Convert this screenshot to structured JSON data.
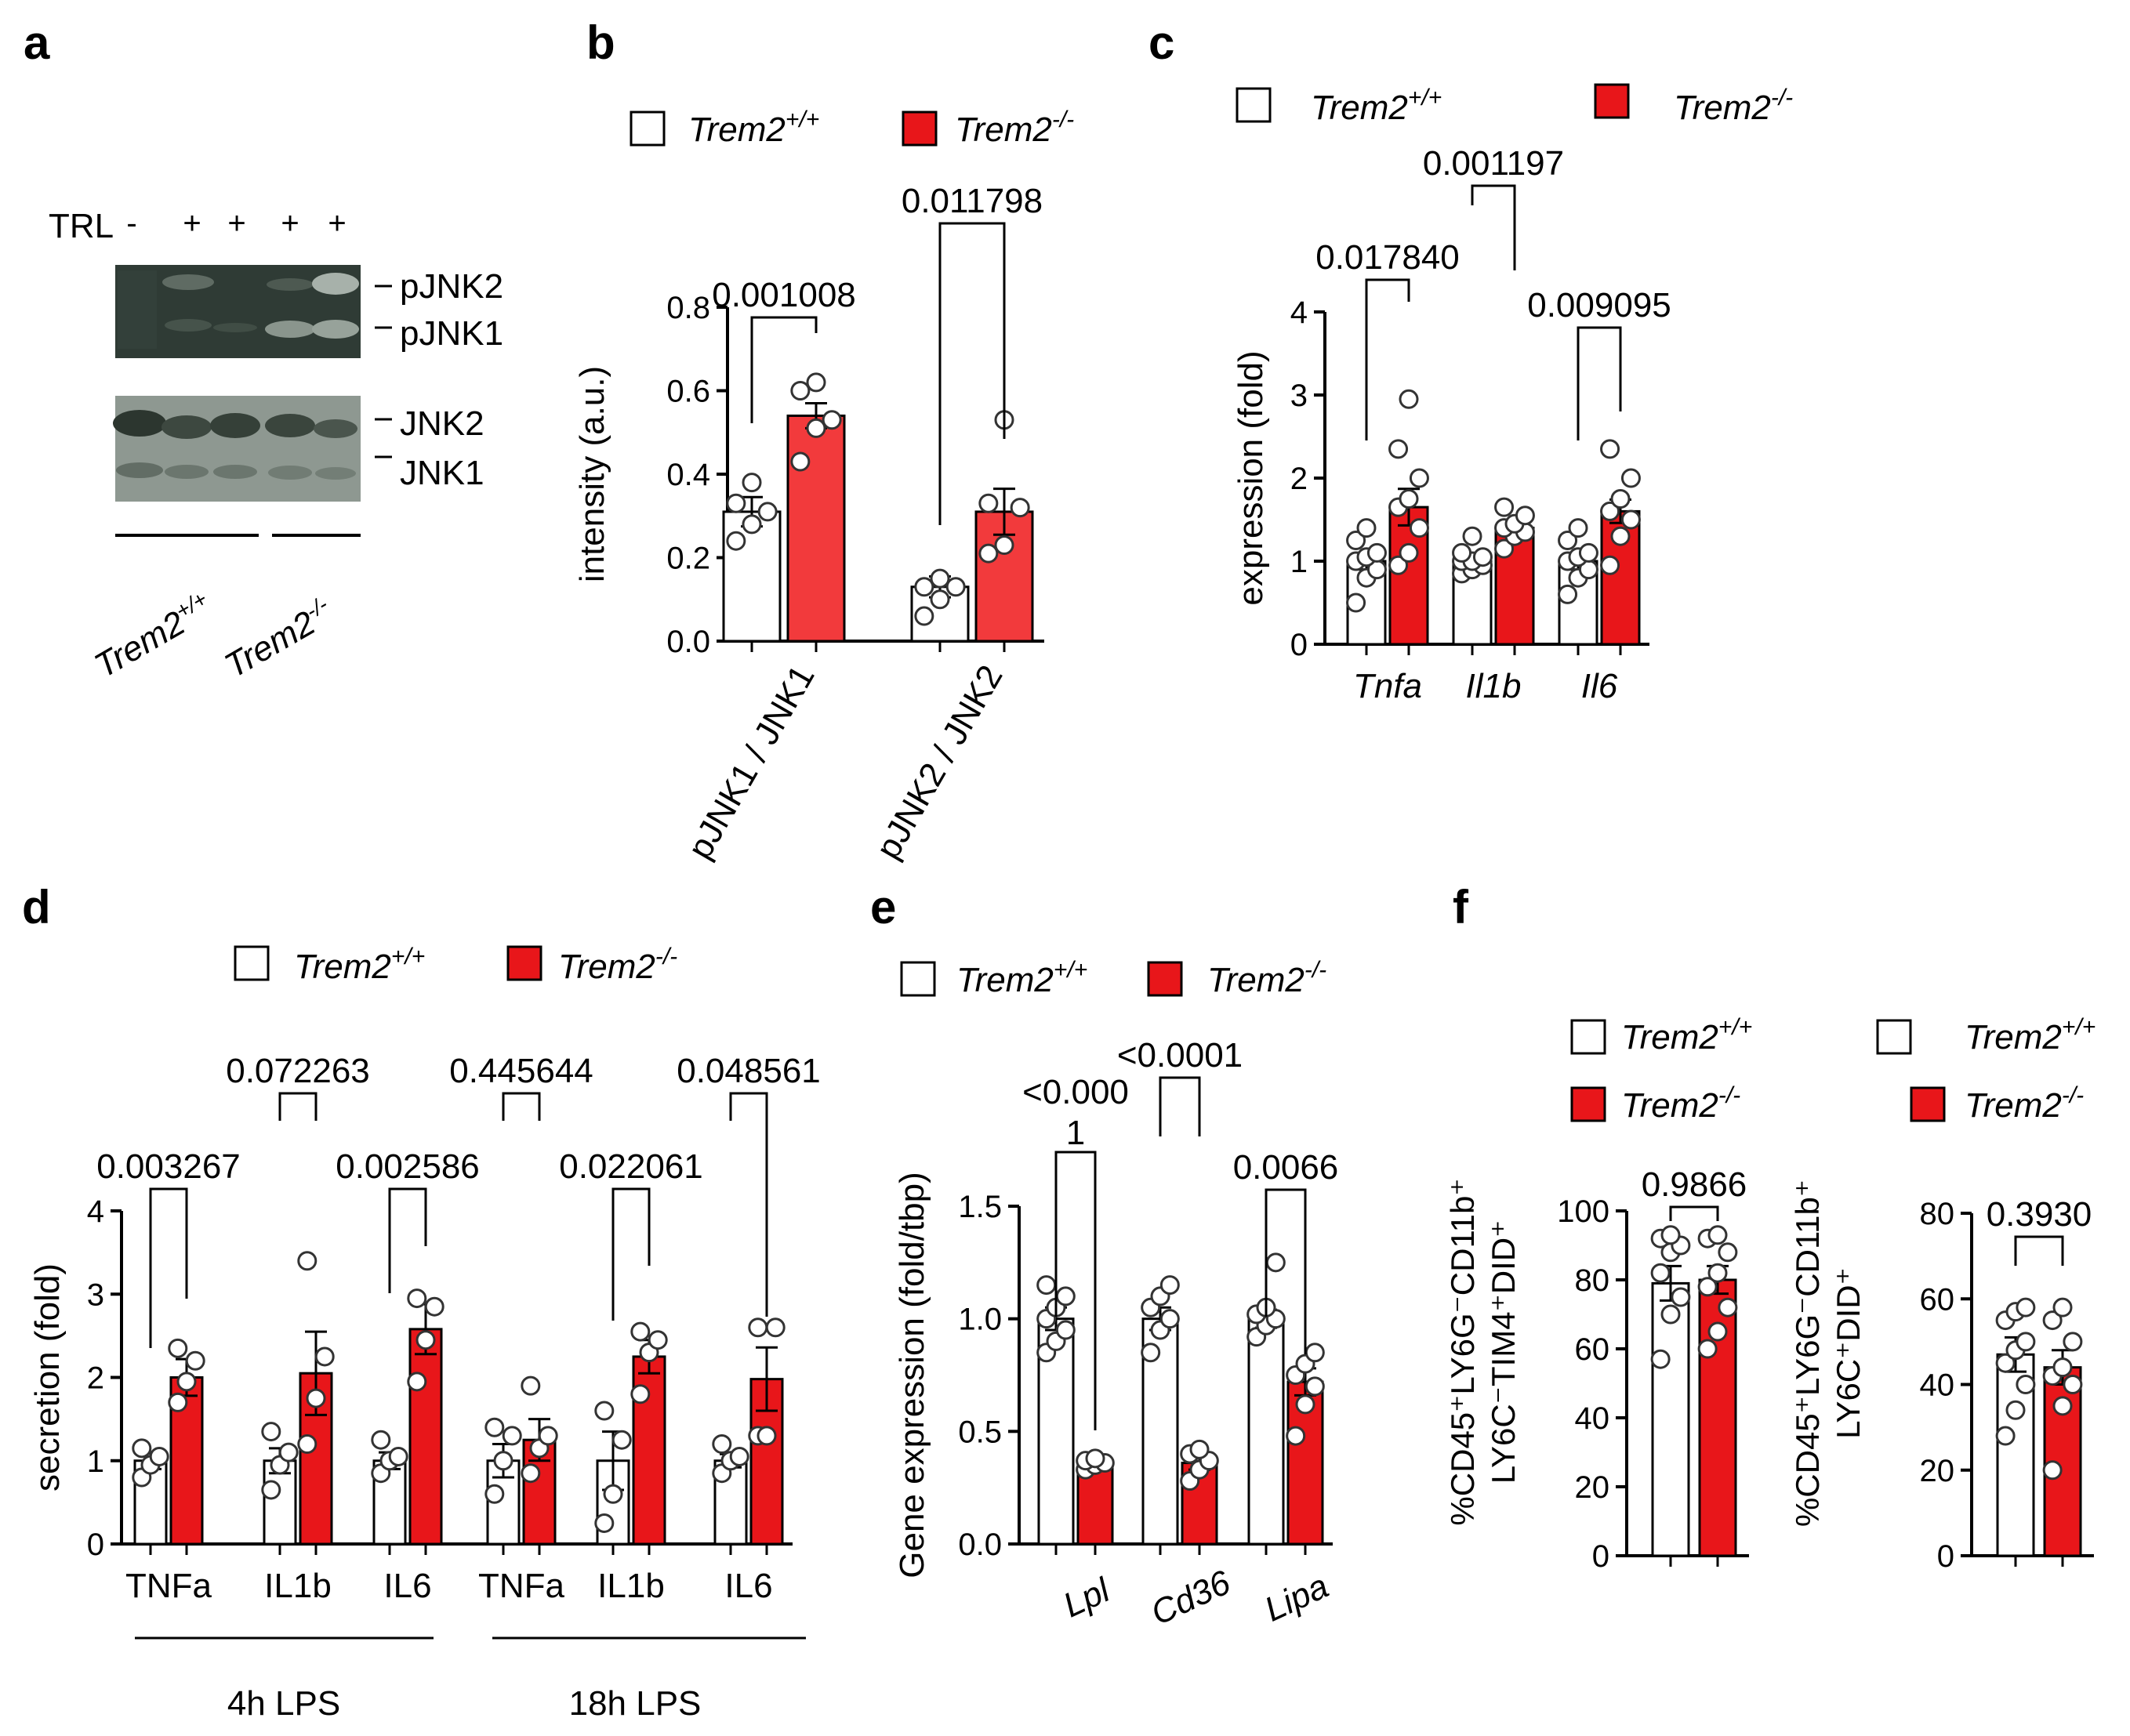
{
  "colors": {
    "wt": "#ffffff",
    "ko": "#e8161a",
    "ko_light": "#f23a3c",
    "ink": "#000000",
    "blot_bg": "#2f3b35",
    "blot_bg2": "#6d7870"
  },
  "legend": {
    "wt": "Trem2",
    "wt_sup": "+/+",
    "ko": "Trem2",
    "ko_sup": "-/-"
  },
  "panel_a": {
    "letter": "a",
    "treatment_label": "TRL",
    "treatment_marks": [
      "-",
      "+",
      "+",
      "+",
      "+"
    ],
    "band_labels": [
      "pJNK2",
      "pJNK1",
      "JNK2",
      "JNK1"
    ],
    "genotype_labels": [
      {
        "text": "Trem2",
        "sup": "+/+"
      },
      {
        "text": "Trem2",
        "sup": "-/-"
      }
    ]
  },
  "chart_data": [
    {
      "id": "b",
      "type": "bar",
      "letter": "b",
      "ylabel": "intensity (a.u.)",
      "ylim": [
        0,
        0.8
      ],
      "yticks": [
        "0.0",
        "0.2",
        "0.4",
        "0.6",
        "0.8"
      ],
      "categories": [
        "pJNK1 / JNK1",
        "pJNK2 / JNK2"
      ],
      "series": [
        {
          "name": "Trem2+/+",
          "values": [
            0.31,
            0.13
          ],
          "sem": [
            0.035,
            0.025
          ]
        },
        {
          "name": "Trem2-/-",
          "values": [
            0.54,
            0.31
          ],
          "sem": [
            0.03,
            0.055
          ]
        }
      ],
      "points": [
        [
          [
            0.24,
            0.28,
            0.31,
            0.33,
            0.38
          ],
          [
            0.06,
            0.1,
            0.13,
            0.13,
            0.15
          ]
        ],
        [
          [
            0.43,
            0.51,
            0.53,
            0.6,
            0.62
          ],
          [
            0.21,
            0.23,
            0.32,
            0.33,
            0.53
          ]
        ]
      ],
      "comparisons": [
        {
          "label": "0.001008"
        },
        {
          "label": "0.011798"
        }
      ]
    },
    {
      "id": "c",
      "type": "bar",
      "letter": "c",
      "ylabel": "expression  (fold)",
      "ylim": [
        0,
        4
      ],
      "yticks": [
        "0",
        "1",
        "2",
        "3",
        "4"
      ],
      "categories": [
        "Tnfa",
        "Il1b",
        "Il6"
      ],
      "series": [
        {
          "name": "Trem2+/+",
          "values": [
            1.0,
            1.0,
            1.0
          ],
          "sem": [
            0.1,
            0.05,
            0.1
          ]
        },
        {
          "name": "Trem2-/-",
          "values": [
            1.65,
            1.4,
            1.6
          ],
          "sem": [
            0.22,
            0.08,
            0.14
          ]
        }
      ],
      "points": [
        [
          [
            0.5,
            0.8,
            0.9,
            1.0,
            1.05,
            1.1,
            1.25,
            1.4
          ],
          [
            0.85,
            0.9,
            0.95,
            1.0,
            1.0,
            1.05,
            1.1,
            1.3
          ],
          [
            0.6,
            0.8,
            0.9,
            1.0,
            1.05,
            1.1,
            1.25,
            1.4
          ]
        ],
        [
          [
            0.95,
            1.1,
            1.4,
            1.65,
            1.75,
            2.0,
            2.35,
            2.95
          ],
          [
            1.15,
            1.3,
            1.35,
            1.4,
            1.45,
            1.55,
            1.65
          ],
          [
            0.95,
            1.3,
            1.5,
            1.6,
            1.75,
            2.0,
            2.35
          ]
        ]
      ],
      "comparisons": [
        {
          "label": "0.017840"
        },
        {
          "label": "0.001197"
        },
        {
          "label": "0.009095"
        }
      ]
    },
    {
      "id": "d",
      "type": "bar",
      "letter": "d",
      "ylabel": "secretion (fold)",
      "ylim": [
        0,
        4
      ],
      "yticks": [
        "0",
        "1",
        "2",
        "3",
        "4"
      ],
      "categories": [
        "TNFa",
        "IL1b",
        "IL6",
        "TNFa",
        "IL1b",
        "IL6"
      ],
      "groups": [
        "4h LPS",
        "18h LPS"
      ],
      "series": [
        {
          "name": "Trem2+/+",
          "values": [
            1.0,
            1.0,
            1.0,
            1.0,
            1.0,
            1.0
          ],
          "sem": [
            0.1,
            0.15,
            0.1,
            0.2,
            0.35,
            0.08
          ]
        },
        {
          "name": "Trem2-/-",
          "values": [
            2.0,
            2.05,
            2.58,
            1.25,
            2.25,
            1.98
          ],
          "sem": [
            0.22,
            0.5,
            0.3,
            0.25,
            0.2,
            0.38
          ]
        }
      ],
      "points": [
        [
          [
            0.8,
            0.95,
            1.05,
            1.15
          ],
          [
            0.65,
            0.95,
            1.1,
            1.35
          ],
          [
            0.85,
            1.0,
            1.05,
            1.25
          ],
          [
            0.6,
            1.0,
            1.3,
            1.4
          ],
          [
            0.25,
            0.6,
            1.25,
            1.6
          ],
          [
            0.85,
            1.0,
            1.05,
            1.2
          ]
        ],
        [
          [
            1.7,
            1.95,
            2.2,
            2.35
          ],
          [
            1.2,
            1.75,
            2.25,
            3.4
          ],
          [
            1.95,
            2.45,
            2.85,
            2.95
          ],
          [
            0.85,
            1.15,
            1.3,
            1.9
          ],
          [
            1.8,
            2.3,
            2.45,
            2.55
          ],
          [
            1.3,
            1.3,
            2.6,
            2.6
          ]
        ]
      ],
      "comparisons": [
        {
          "label": "0.003267"
        },
        {
          "label": "0.072263"
        },
        {
          "label": "0.002586"
        },
        {
          "label": "0.445644"
        },
        {
          "label": "0.022061"
        },
        {
          "label": "0.048561"
        }
      ]
    },
    {
      "id": "e",
      "type": "bar",
      "letter": "e",
      "ylabel": "Gene expression (fold/tbp)",
      "ylim": [
        0,
        1.5
      ],
      "yticks": [
        "0.0",
        "0.5",
        "1.0",
        "1.5"
      ],
      "categories": [
        "Lpl",
        "Cd36",
        "Lipa"
      ],
      "series": [
        {
          "name": "Trem2+/+",
          "values": [
            1.0,
            1.0,
            1.0
          ],
          "sem": [
            0.05,
            0.05,
            0.04
          ]
        },
        {
          "name": "Trem2-/-",
          "values": [
            0.36,
            0.36,
            0.72
          ],
          "sem": [
            0.02,
            0.03,
            0.06
          ]
        }
      ],
      "points": [
        [
          [
            0.85,
            0.9,
            0.95,
            1.0,
            1.05,
            1.1,
            1.15
          ],
          [
            0.85,
            0.95,
            1.0,
            1.05,
            1.1,
            1.15
          ],
          [
            0.92,
            0.97,
            1.0,
            1.02,
            1.05,
            1.25
          ]
        ],
        [
          [
            0.33,
            0.35,
            0.36,
            0.37,
            0.38
          ],
          [
            0.28,
            0.33,
            0.37,
            0.4,
            0.42
          ],
          [
            0.48,
            0.62,
            0.7,
            0.75,
            0.8,
            0.85
          ]
        ]
      ],
      "comparisons": [
        {
          "label_top": "<0.000",
          "label_bottom": "1"
        },
        {
          "label": "<0.0001"
        },
        {
          "label": "0.0066"
        }
      ]
    },
    {
      "id": "f1",
      "type": "bar",
      "letter": "f",
      "ylabel_line1": "%CD45⁺LY6G⁻CD11b⁺",
      "ylabel_line2": "LY6C⁻TIM4⁺DID⁺",
      "ylim": [
        0,
        100
      ],
      "yticks": [
        "0",
        "20",
        "40",
        "60",
        "80",
        "100"
      ],
      "categories": [
        ""
      ],
      "series": [
        {
          "name": "Trem2+/+",
          "values": [
            79
          ],
          "sem": [
            5
          ]
        },
        {
          "name": "Trem2-/-",
          "values": [
            80
          ],
          "sem": [
            4
          ]
        }
      ],
      "points": [
        [
          [
            57,
            70,
            75,
            82,
            88,
            90,
            92,
            93
          ]
        ],
        [
          [
            60,
            65,
            72,
            78,
            82,
            88,
            92,
            93
          ]
        ]
      ],
      "comparisons": [
        {
          "label": "0.9866"
        }
      ]
    },
    {
      "id": "f2",
      "type": "bar",
      "ylabel_line1": "%CD45⁺LY6G⁻CD11b⁺",
      "ylabel_line2": "LY6C⁺DID⁺",
      "ylim": [
        0,
        80
      ],
      "yticks": [
        "0",
        "20",
        "40",
        "60",
        "80"
      ],
      "categories": [
        ""
      ],
      "series": [
        {
          "name": "Trem2+/+",
          "values": [
            47
          ],
          "sem": [
            4
          ]
        },
        {
          "name": "Trem2-/-",
          "values": [
            44
          ],
          "sem": [
            4
          ]
        }
      ],
      "points": [
        [
          [
            28,
            34,
            40,
            45,
            48,
            50,
            55,
            57,
            58
          ]
        ],
        [
          [
            20,
            35,
            40,
            42,
            44,
            50,
            55,
            58
          ]
        ]
      ],
      "comparisons": [
        {
          "label": "0.3930"
        }
      ]
    }
  ]
}
